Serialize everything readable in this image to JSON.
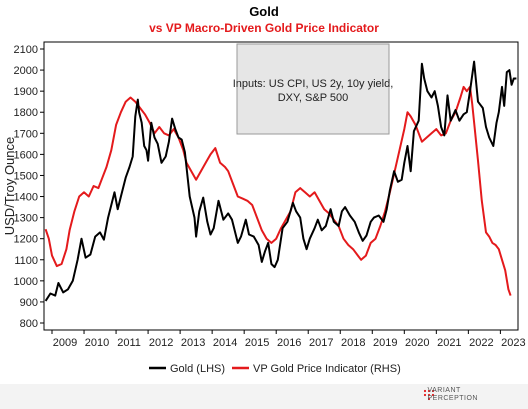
{
  "chart_data": {
    "type": "line",
    "title": "Gold",
    "subtitle": "vs VP Macro-Driven Gold Price Indicator",
    "ylabel": "USD/Troy Ounce",
    "xlabel": "",
    "ylim": [
      800,
      2100
    ],
    "y_ticks": [
      800,
      900,
      1000,
      1100,
      1200,
      1300,
      1400,
      1500,
      1600,
      1700,
      1800,
      1900,
      2000,
      2100
    ],
    "x_range": [
      2008.75,
      2023.55
    ],
    "x_ticks": [
      "2009",
      "2010",
      "2011",
      "2012",
      "2013",
      "2014",
      "2015",
      "2016",
      "2017",
      "2018",
      "2019",
      "2020",
      "2021",
      "2022",
      "2023"
    ],
    "grid": false,
    "legend_position": "bottom",
    "annotation": {
      "lines": [
        "Inputs: US CPI, US 2y, 10y yield,",
        "DXY, S&P 500"
      ]
    },
    "series": [
      {
        "name": "Gold (LHS)",
        "color": "#000000",
        "points": [
          [
            2008.8,
            905
          ],
          [
            2008.95,
            940
          ],
          [
            2009.1,
            930
          ],
          [
            2009.2,
            990
          ],
          [
            2009.35,
            945
          ],
          [
            2009.5,
            960
          ],
          [
            2009.65,
            1000
          ],
          [
            2009.8,
            1100
          ],
          [
            2009.92,
            1200
          ],
          [
            2010.05,
            1110
          ],
          [
            2010.2,
            1125
          ],
          [
            2010.35,
            1210
          ],
          [
            2010.5,
            1230
          ],
          [
            2010.62,
            1195
          ],
          [
            2010.75,
            1300
          ],
          [
            2010.85,
            1360
          ],
          [
            2010.95,
            1420
          ],
          [
            2011.05,
            1340
          ],
          [
            2011.15,
            1400
          ],
          [
            2011.3,
            1490
          ],
          [
            2011.42,
            1540
          ],
          [
            2011.52,
            1590
          ],
          [
            2011.6,
            1780
          ],
          [
            2011.68,
            1860
          ],
          [
            2011.72,
            1800
          ],
          [
            2011.8,
            1750
          ],
          [
            2011.88,
            1640
          ],
          [
            2011.95,
            1620
          ],
          [
            2012.0,
            1570
          ],
          [
            2012.1,
            1750
          ],
          [
            2012.2,
            1680
          ],
          [
            2012.3,
            1650
          ],
          [
            2012.42,
            1560
          ],
          [
            2012.55,
            1590
          ],
          [
            2012.65,
            1660
          ],
          [
            2012.75,
            1770
          ],
          [
            2012.85,
            1720
          ],
          [
            2012.95,
            1680
          ],
          [
            2013.05,
            1670
          ],
          [
            2013.15,
            1610
          ],
          [
            2013.3,
            1400
          ],
          [
            2013.45,
            1300
          ],
          [
            2013.5,
            1210
          ],
          [
            2013.6,
            1330
          ],
          [
            2013.72,
            1395
          ],
          [
            2013.85,
            1280
          ],
          [
            2013.95,
            1220
          ],
          [
            2014.05,
            1250
          ],
          [
            2014.2,
            1380
          ],
          [
            2014.35,
            1290
          ],
          [
            2014.5,
            1320
          ],
          [
            2014.62,
            1290
          ],
          [
            2014.8,
            1180
          ],
          [
            2014.9,
            1210
          ],
          [
            2015.05,
            1290
          ],
          [
            2015.15,
            1220
          ],
          [
            2015.3,
            1210
          ],
          [
            2015.45,
            1170
          ],
          [
            2015.55,
            1090
          ],
          [
            2015.65,
            1140
          ],
          [
            2015.75,
            1180
          ],
          [
            2015.85,
            1080
          ],
          [
            2015.95,
            1065
          ],
          [
            2016.05,
            1100
          ],
          [
            2016.2,
            1250
          ],
          [
            2016.35,
            1280
          ],
          [
            2016.52,
            1370
          ],
          [
            2016.62,
            1330
          ],
          [
            2016.75,
            1300
          ],
          [
            2016.85,
            1200
          ],
          [
            2016.95,
            1150
          ],
          [
            2017.05,
            1200
          ],
          [
            2017.2,
            1250
          ],
          [
            2017.3,
            1290
          ],
          [
            2017.42,
            1240
          ],
          [
            2017.55,
            1260
          ],
          [
            2017.7,
            1340
          ],
          [
            2017.8,
            1280
          ],
          [
            2017.95,
            1260
          ],
          [
            2018.05,
            1330
          ],
          [
            2018.15,
            1350
          ],
          [
            2018.3,
            1310
          ],
          [
            2018.45,
            1280
          ],
          [
            2018.58,
            1230
          ],
          [
            2018.7,
            1190
          ],
          [
            2018.82,
            1215
          ],
          [
            2018.95,
            1280
          ],
          [
            2019.05,
            1300
          ],
          [
            2019.2,
            1310
          ],
          [
            2019.35,
            1280
          ],
          [
            2019.45,
            1340
          ],
          [
            2019.55,
            1430
          ],
          [
            2019.68,
            1520
          ],
          [
            2019.8,
            1470
          ],
          [
            2019.92,
            1480
          ],
          [
            2020.0,
            1560
          ],
          [
            2020.1,
            1640
          ],
          [
            2020.2,
            1520
          ],
          [
            2020.3,
            1710
          ],
          [
            2020.45,
            1760
          ],
          [
            2020.55,
            2030
          ],
          [
            2020.62,
            1960
          ],
          [
            2020.72,
            1900
          ],
          [
            2020.85,
            1870
          ],
          [
            2020.95,
            1900
          ],
          [
            2021.05,
            1830
          ],
          [
            2021.15,
            1730
          ],
          [
            2021.25,
            1690
          ],
          [
            2021.35,
            1880
          ],
          [
            2021.45,
            1760
          ],
          [
            2021.6,
            1810
          ],
          [
            2021.72,
            1760
          ],
          [
            2021.85,
            1790
          ],
          [
            2021.95,
            1800
          ],
          [
            2022.05,
            1900
          ],
          [
            2022.18,
            2040
          ],
          [
            2022.3,
            1850
          ],
          [
            2022.45,
            1820
          ],
          [
            2022.55,
            1730
          ],
          [
            2022.65,
            1680
          ],
          [
            2022.78,
            1640
          ],
          [
            2022.88,
            1750
          ],
          [
            2022.95,
            1800
          ],
          [
            2023.05,
            1920
          ],
          [
            2023.12,
            1830
          ],
          [
            2023.2,
            1990
          ],
          [
            2023.28,
            2000
          ],
          [
            2023.35,
            1930
          ],
          [
            2023.42,
            1960
          ],
          [
            2023.5,
            1960
          ]
        ]
      },
      {
        "name": "VP Gold Price Indicator (RHS)",
        "color": "#e41a1c",
        "points": [
          [
            2008.8,
            1245
          ],
          [
            2008.9,
            1200
          ],
          [
            2009.0,
            1120
          ],
          [
            2009.15,
            1070
          ],
          [
            2009.3,
            1080
          ],
          [
            2009.45,
            1150
          ],
          [
            2009.55,
            1240
          ],
          [
            2009.7,
            1330
          ],
          [
            2009.85,
            1400
          ],
          [
            2010.0,
            1420
          ],
          [
            2010.15,
            1400
          ],
          [
            2010.3,
            1450
          ],
          [
            2010.45,
            1440
          ],
          [
            2010.55,
            1480
          ],
          [
            2010.7,
            1540
          ],
          [
            2010.85,
            1620
          ],
          [
            2011.0,
            1740
          ],
          [
            2011.15,
            1800
          ],
          [
            2011.3,
            1850
          ],
          [
            2011.45,
            1870
          ],
          [
            2011.6,
            1850
          ],
          [
            2011.75,
            1820
          ],
          [
            2011.9,
            1790
          ],
          [
            2012.05,
            1750
          ],
          [
            2012.2,
            1700
          ],
          [
            2012.35,
            1730
          ],
          [
            2012.5,
            1700
          ],
          [
            2012.65,
            1690
          ],
          [
            2012.8,
            1720
          ],
          [
            2012.95,
            1680
          ],
          [
            2013.1,
            1620
          ],
          [
            2013.2,
            1560
          ],
          [
            2013.35,
            1520
          ],
          [
            2013.5,
            1480
          ],
          [
            2013.65,
            1520
          ],
          [
            2013.8,
            1560
          ],
          [
            2013.95,
            1600
          ],
          [
            2014.1,
            1630
          ],
          [
            2014.25,
            1560
          ],
          [
            2014.4,
            1540
          ],
          [
            2014.5,
            1520
          ],
          [
            2014.65,
            1460
          ],
          [
            2014.8,
            1400
          ],
          [
            2014.95,
            1390
          ],
          [
            2015.1,
            1380
          ],
          [
            2015.25,
            1360
          ],
          [
            2015.4,
            1300
          ],
          [
            2015.55,
            1240
          ],
          [
            2015.7,
            1200
          ],
          [
            2015.85,
            1180
          ],
          [
            2016.0,
            1200
          ],
          [
            2016.15,
            1250
          ],
          [
            2016.3,
            1290
          ],
          [
            2016.45,
            1330
          ],
          [
            2016.6,
            1420
          ],
          [
            2016.75,
            1440
          ],
          [
            2016.9,
            1420
          ],
          [
            2017.05,
            1400
          ],
          [
            2017.2,
            1420
          ],
          [
            2017.35,
            1380
          ],
          [
            2017.5,
            1340
          ],
          [
            2017.65,
            1320
          ],
          [
            2017.8,
            1290
          ],
          [
            2017.95,
            1260
          ],
          [
            2018.1,
            1200
          ],
          [
            2018.25,
            1170
          ],
          [
            2018.4,
            1150
          ],
          [
            2018.55,
            1120
          ],
          [
            2018.65,
            1100
          ],
          [
            2018.8,
            1120
          ],
          [
            2018.95,
            1180
          ],
          [
            2019.1,
            1200
          ],
          [
            2019.25,
            1260
          ],
          [
            2019.4,
            1330
          ],
          [
            2019.55,
            1420
          ],
          [
            2019.7,
            1520
          ],
          [
            2019.85,
            1620
          ],
          [
            2020.0,
            1720
          ],
          [
            2020.1,
            1800
          ],
          [
            2020.2,
            1780
          ],
          [
            2020.35,
            1740
          ],
          [
            2020.45,
            1700
          ],
          [
            2020.55,
            1660
          ],
          [
            2020.7,
            1680
          ],
          [
            2020.85,
            1700
          ],
          [
            2021.0,
            1720
          ],
          [
            2021.15,
            1690
          ],
          [
            2021.3,
            1700
          ],
          [
            2021.45,
            1760
          ],
          [
            2021.6,
            1800
          ],
          [
            2021.75,
            1870
          ],
          [
            2021.85,
            1920
          ],
          [
            2021.95,
            1900
          ],
          [
            2022.05,
            1920
          ],
          [
            2022.12,
            1840
          ],
          [
            2022.2,
            1720
          ],
          [
            2022.3,
            1570
          ],
          [
            2022.42,
            1380
          ],
          [
            2022.55,
            1230
          ],
          [
            2022.65,
            1210
          ],
          [
            2022.75,
            1180
          ],
          [
            2022.85,
            1170
          ],
          [
            2022.95,
            1150
          ],
          [
            2023.05,
            1100
          ],
          [
            2023.15,
            1050
          ],
          [
            2023.25,
            960
          ],
          [
            2023.32,
            930
          ]
        ]
      }
    ]
  },
  "footer": {
    "brand_line1": "VARIANT",
    "brand_line2": "PERCEPTION"
  }
}
